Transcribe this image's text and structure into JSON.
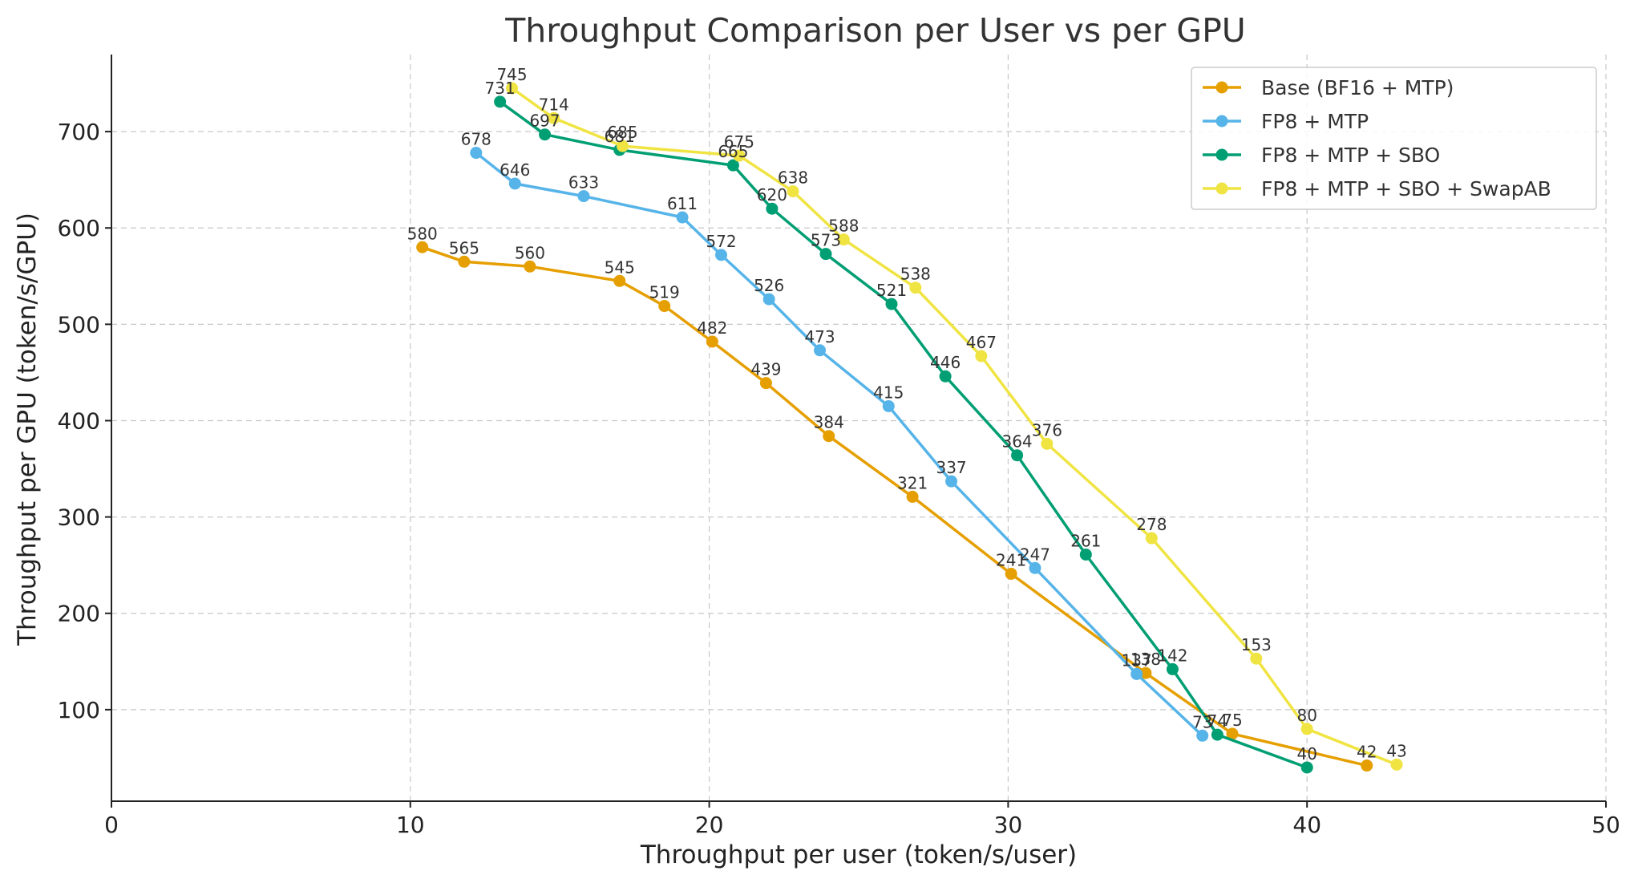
{
  "chart_data": {
    "type": "line",
    "title": "Throughput Comparison per User vs per GPU",
    "xlabel": "Throughput per user (token/s/user)",
    "ylabel": "Throughput per GPU (token/s/GPU)",
    "xlim": [
      0,
      50
    ],
    "ylim": [
      5,
      780
    ],
    "xticks": [
      0,
      10,
      20,
      30,
      40,
      50
    ],
    "yticks": [
      100,
      200,
      300,
      400,
      500,
      600,
      700
    ],
    "grid": true,
    "legend_position": "top-right",
    "series": [
      {
        "name": "Base (BF16 + MTP)",
        "color": "#E69F00",
        "x": [
          10.4,
          11.8,
          14.0,
          17.0,
          18.5,
          20.1,
          21.9,
          24.0,
          26.8,
          30.1,
          34.6,
          37.5,
          42.0
        ],
        "y": [
          580,
          565,
          560,
          545,
          519,
          482,
          439,
          384,
          321,
          241,
          138,
          75,
          42
        ]
      },
      {
        "name": "FP8 + MTP",
        "color": "#56B4E9",
        "x": [
          12.2,
          13.5,
          15.8,
          19.1,
          20.4,
          22.0,
          23.7,
          26.0,
          28.1,
          30.9,
          34.3,
          36.5
        ],
        "y": [
          678,
          646,
          633,
          611,
          572,
          526,
          473,
          415,
          337,
          247,
          137,
          73
        ]
      },
      {
        "name": "FP8 + MTP + SBO",
        "color": "#009E73",
        "x": [
          13.0,
          14.5,
          17.0,
          20.8,
          22.1,
          23.9,
          26.1,
          27.9,
          30.3,
          32.6,
          35.5,
          37.0,
          40.0
        ],
        "y": [
          731,
          697,
          681,
          665,
          620,
          573,
          521,
          446,
          364,
          261,
          142,
          74,
          40
        ]
      },
      {
        "name": "FP8 + MTP + SBO + SwapAB",
        "color": "#F0E442",
        "x": [
          13.4,
          14.8,
          17.1,
          21.0,
          22.8,
          24.5,
          26.9,
          29.1,
          31.3,
          34.8,
          38.3,
          40.0,
          43.0
        ],
        "y": [
          745,
          714,
          685,
          675,
          638,
          588,
          538,
          467,
          376,
          278,
          153,
          80,
          43
        ]
      }
    ]
  }
}
